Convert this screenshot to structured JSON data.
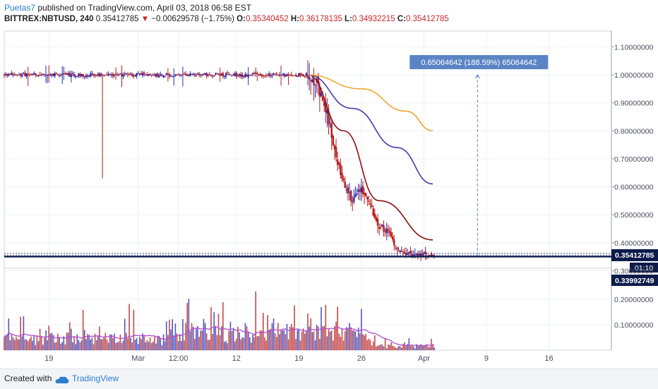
{
  "header": {
    "user": "Puetas7",
    "published": " published on TradingView.com, April 03, 2018 06:58 EST",
    "symbol": "BITTREX:NBTUSD, 240",
    "last": "0.35412785",
    "change": "−0.00629578 (−1.75%)",
    "open_label": "O:",
    "open": "0.35340452",
    "high_label": "H:",
    "high": "0.36178135",
    "low_label": "L:",
    "low": "0.34932215",
    "close_label": "C:",
    "close": "0.35412785"
  },
  "colors": {
    "up": "#2b2bb0",
    "down": "#b71c1c",
    "ma_fast": "#8b0f0f",
    "ma_mid": "#3f3fa8",
    "ma_slow": "#f2a531",
    "volume_ma": "#b04fd0",
    "measure_box": "#5b84c4",
    "price_tag": "#0d1b4a"
  },
  "chart_data": {
    "type": "candlestick",
    "x_tick_labels": [
      "19",
      "Mar",
      "12:00",
      "12",
      "19",
      "26",
      "Apr",
      "9",
      "16"
    ],
    "y_tick_labels": [
      "1.10000000",
      "1.00000000",
      "0.90000000",
      "0.80000000",
      "0.70000000",
      "0.60000000",
      "0.50000000",
      "0.40000000",
      "0.30000000"
    ],
    "ylim": [
      0.3,
      1.1
    ],
    "volume_tick_labels": [
      "0.20000000",
      "0.10000000"
    ],
    "price_path": [
      {
        "t": "2018-02-14",
        "v": 1.0
      },
      {
        "t": "2018-03-20",
        "v": 1.0
      },
      {
        "t": "2018-03-21",
        "v": 0.97
      },
      {
        "t": "2018-03-22",
        "v": 0.88
      },
      {
        "t": "2018-03-23",
        "v": 0.72
      },
      {
        "t": "2018-03-24",
        "v": 0.62
      },
      {
        "t": "2018-03-25",
        "v": 0.55
      },
      {
        "t": "2018-03-26",
        "v": 0.6
      },
      {
        "t": "2018-03-27",
        "v": 0.53
      },
      {
        "t": "2018-03-28",
        "v": 0.46
      },
      {
        "t": "2018-03-29",
        "v": 0.44
      },
      {
        "t": "2018-03-30",
        "v": 0.38
      },
      {
        "t": "2018-03-31",
        "v": 0.36
      },
      {
        "t": "2018-04-03",
        "v": 0.354
      }
    ],
    "spike_low": {
      "t": "2018-02-25",
      "v": 0.63
    },
    "moving_averages": [
      {
        "name": "fast",
        "points": [
          {
            "t": "2018-03-20",
            "v": 1.0
          },
          {
            "t": "2018-03-24",
            "v": 0.8
          },
          {
            "t": "2018-03-28",
            "v": 0.55
          },
          {
            "t": "2018-04-03",
            "v": 0.41
          }
        ]
      },
      {
        "name": "mid",
        "points": [
          {
            "t": "2018-03-20",
            "v": 1.0
          },
          {
            "t": "2018-03-25",
            "v": 0.88
          },
          {
            "t": "2018-03-30",
            "v": 0.74
          },
          {
            "t": "2018-04-03",
            "v": 0.61
          }
        ]
      },
      {
        "name": "slow",
        "points": [
          {
            "t": "2018-03-20",
            "v": 1.0
          },
          {
            "t": "2018-03-26",
            "v": 0.95
          },
          {
            "t": "2018-03-31",
            "v": 0.87
          },
          {
            "t": "2018-04-03",
            "v": 0.8
          }
        ]
      }
    ],
    "measure": {
      "label": "0.65064642 (188.59%) 65064642",
      "from": 0.35,
      "to": 1.0
    },
    "price_tags": [
      {
        "label": "0.35412785",
        "value": 0.354
      },
      {
        "label": "0.33992749",
        "value": 0.34
      }
    ],
    "countdown": "01:10"
  },
  "footer": {
    "created": "Created with",
    "brand": "TradingView"
  }
}
